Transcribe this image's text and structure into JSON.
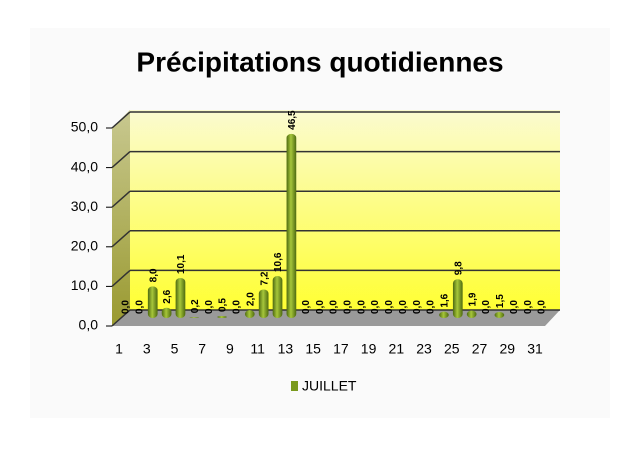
{
  "chart_data": {
    "type": "bar",
    "title": "Précipitations quotidiennes",
    "categories": [
      "1",
      null,
      "3",
      null,
      "5",
      null,
      "7",
      null,
      "9",
      null,
      "11",
      null,
      "13",
      null,
      "15",
      null,
      "17",
      null,
      "19",
      null,
      "21",
      null,
      "23",
      null,
      "25",
      null,
      "27",
      null,
      "29",
      null,
      "31"
    ],
    "series": [
      {
        "name": "JUILLET",
        "color": "#7a9a1e",
        "values": [
          0,
          0,
          8,
          2.6,
          10.1,
          0.2,
          0,
          0.5,
          0,
          2,
          7.2,
          10.6,
          46.5,
          0,
          0,
          0,
          0,
          0,
          0,
          0,
          0,
          0,
          0,
          1.6,
          9.8,
          1.9,
          0,
          1.5,
          0,
          0,
          0
        ],
        "value_labels": [
          "0,0",
          "0,0",
          "8,0",
          "2,6",
          "10,1",
          "0,2",
          "0,0",
          "0,5",
          "0,0",
          "2,0",
          "7,2",
          "10,6",
          "46,5",
          "0,0",
          "0,0",
          "0,0",
          "0,0",
          "0,0",
          "0,0",
          "0,0",
          "0,0",
          "0,0",
          "0,0",
          "1,6",
          "9,8",
          "1,9",
          "0,0",
          "1,5",
          "0,0",
          "0,0",
          "0,0"
        ]
      }
    ],
    "ylim": [
      0,
      50
    ],
    "yticks": [
      {
        "value": 0,
        "label": "0,0"
      },
      {
        "value": 10,
        "label": "10,0"
      },
      {
        "value": 20,
        "label": "20,0"
      },
      {
        "value": 30,
        "label": "30,0"
      },
      {
        "value": 40,
        "label": "40,0"
      },
      {
        "value": 50,
        "label": "50,0"
      }
    ],
    "grid": true,
    "legend": "bottom"
  }
}
